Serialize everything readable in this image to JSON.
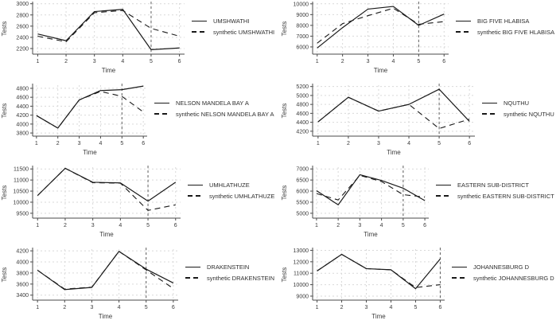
{
  "figure": {
    "ylabel": "Tests",
    "xlabel": "Time",
    "layout": "4 rows x 2 columns",
    "colors": {
      "series_line": "#1a1a1a",
      "grid_line": "#d9d9d9",
      "axis_line": "#4a4a4a",
      "treatment_vline": "#606060",
      "text": "#3a3a3a",
      "background": "#ffffff"
    }
  },
  "chart_data": [
    {
      "type": "line",
      "district": "UMSHWATHI",
      "xlabel": "Time",
      "ylabel": "Tests",
      "x": [
        1,
        2,
        3,
        4,
        5,
        6
      ],
      "xticks": [
        1,
        2,
        3,
        4,
        5,
        6
      ],
      "xlim": [
        0.82,
        6.18
      ],
      "yticks": [
        2200,
        2400,
        2600,
        2800,
        3000
      ],
      "ylim": [
        2100,
        3010
      ],
      "vline_x": 5,
      "grid": true,
      "legend_position": "right",
      "series": [
        {
          "name": "UMSHWATHI",
          "style": "solid",
          "values": [
            2460,
            2340,
            2860,
            2900,
            2180,
            2210
          ]
        },
        {
          "name": "synthetic UMSHWATHI",
          "style": "dashed",
          "values": [
            2420,
            2320,
            2840,
            2880,
            2560,
            2420
          ]
        }
      ]
    },
    {
      "type": "line",
      "district": "BIG FIVE HLABISA",
      "xlabel": "Time",
      "ylabel": "Tests",
      "x": [
        1,
        2,
        3,
        4,
        5,
        6
      ],
      "xticks": [
        1,
        2,
        3,
        4,
        5,
        6
      ],
      "xlim": [
        0.82,
        6.18
      ],
      "yticks": [
        6000,
        7000,
        8000,
        9000,
        10000
      ],
      "ylim": [
        5330,
        10060
      ],
      "vline_x": 5,
      "grid": true,
      "legend_position": "right",
      "series": [
        {
          "name": "BIG FIVE HLABISA",
          "style": "solid",
          "values": [
            5900,
            7790,
            9510,
            9760,
            8000,
            9050
          ]
        },
        {
          "name": "synthetic BIG FIVE HLABISA",
          "style": "dashed",
          "values": [
            6350,
            8160,
            8900,
            9590,
            8100,
            8350
          ]
        }
      ]
    },
    {
      "type": "line",
      "district": "NELSON MANDELA BAY A",
      "xlabel": "Time",
      "ylabel": "Tests",
      "x": [
        1,
        2,
        3,
        4,
        5,
        6
      ],
      "xticks": [
        1,
        2,
        3,
        4,
        5,
        6
      ],
      "xlim": [
        0.82,
        6.18
      ],
      "yticks": [
        3800,
        4000,
        4200,
        4400,
        4600,
        4800
      ],
      "ylim": [
        3730,
        4870
      ],
      "vline_x": 5,
      "grid": true,
      "legend_position": "right",
      "series": [
        {
          "name": "NELSON MANDELA BAY A",
          "style": "solid",
          "values": [
            4190,
            3910,
            4540,
            4750,
            4770,
            4850
          ]
        },
        {
          "name": "synthetic NELSON MANDELA BAY A",
          "style": "dashed",
          "values": [
            4190,
            3910,
            4540,
            4730,
            4620,
            4270
          ]
        }
      ]
    },
    {
      "type": "line",
      "district": "NQUTHU",
      "xlabel": "Time",
      "ylabel": "Tests",
      "x": [
        1,
        2,
        3,
        4,
        5,
        6
      ],
      "xticks": [
        1,
        2,
        3,
        4,
        5,
        6
      ],
      "xlim": [
        0.82,
        6.18
      ],
      "yticks": [
        4200,
        4400,
        4600,
        4800,
        5000,
        5200
      ],
      "ylim": [
        4090,
        5230
      ],
      "vline_x": 5,
      "grid": true,
      "legend_position": "right",
      "series": [
        {
          "name": "NQUTHU",
          "style": "solid",
          "values": [
            4410,
            4960,
            4650,
            4800,
            5140,
            4420
          ]
        },
        {
          "name": "synthetic NQUTHU",
          "style": "dashed",
          "values": [
            4410,
            4960,
            4650,
            4800,
            4260,
            4470
          ]
        }
      ]
    },
    {
      "type": "line",
      "district": "UMHLATHUZE",
      "xlabel": "Time",
      "ylabel": "Tests",
      "x": [
        1,
        2,
        3,
        4,
        5,
        6
      ],
      "xticks": [
        1,
        2,
        3,
        4,
        5,
        6
      ],
      "xlim": [
        0.82,
        6.18
      ],
      "yticks": [
        9500,
        10000,
        10500,
        11000,
        11500
      ],
      "ylim": [
        9280,
        11580
      ],
      "vline_x": 5,
      "grid": true,
      "legend_position": "right",
      "series": [
        {
          "name": "UMHLATHUZE",
          "style": "solid",
          "values": [
            10300,
            11530,
            10900,
            10870,
            10050,
            10900
          ]
        },
        {
          "name": "synthetic UMHLATHUZE",
          "style": "dashed",
          "values": [
            10300,
            11530,
            10880,
            10860,
            9630,
            9880
          ]
        }
      ]
    },
    {
      "type": "line",
      "district": "EASTERN SUB-DISTRICT",
      "xlabel": "Time",
      "ylabel": "Tests",
      "x": [
        1,
        2,
        3,
        4,
        5,
        6
      ],
      "xticks": [
        1,
        2,
        3,
        4,
        5,
        6
      ],
      "xlim": [
        0.82,
        6.18
      ],
      "yticks": [
        5000,
        5500,
        6000,
        6500,
        7000
      ],
      "ylim": [
        4780,
        7080
      ],
      "vline_x": 5,
      "grid": true,
      "legend_position": "right",
      "series": [
        {
          "name": "EASTERN SUB-DISTRICT",
          "style": "solid",
          "values": [
            6020,
            5380,
            6740,
            6480,
            6130,
            5570
          ]
        },
        {
          "name": "synthetic EASTERN SUB-DISTRICT",
          "style": "dashed",
          "values": [
            5890,
            5600,
            6710,
            6430,
            5840,
            5730
          ]
        }
      ]
    },
    {
      "type": "line",
      "district": "DRAKENSTEIN",
      "xlabel": "Time",
      "ylabel": "Tests",
      "x": [
        1,
        2,
        3,
        4,
        5,
        6
      ],
      "xticks": [
        1,
        2,
        3,
        4,
        5,
        6
      ],
      "xlim": [
        0.82,
        6.18
      ],
      "yticks": [
        3400,
        3600,
        3800,
        4000,
        4200
      ],
      "ylim": [
        3310,
        4230
      ],
      "vline_x": 5,
      "grid": true,
      "legend_position": "right",
      "series": [
        {
          "name": "DRAKENSTEIN",
          "style": "solid",
          "values": [
            3850,
            3500,
            3540,
            4190,
            3870,
            3620
          ]
        },
        {
          "name": "synthetic DRAKENSTEIN",
          "style": "dashed",
          "values": [
            3850,
            3510,
            3545,
            4190,
            3855,
            3520
          ]
        }
      ]
    },
    {
      "type": "line",
      "district": "JOHANNESBURG D",
      "xlabel": "Time",
      "ylabel": "Tests",
      "x": [
        1,
        2,
        3,
        4,
        5,
        6
      ],
      "xticks": [
        1,
        2,
        3,
        4,
        5,
        6
      ],
      "xlim": [
        0.82,
        6.18
      ],
      "yticks": [
        9000,
        10000,
        11000,
        12000,
        13000
      ],
      "ylim": [
        8650,
        13100
      ],
      "vline_x": 6,
      "grid": true,
      "legend_position": "right",
      "series": [
        {
          "name": "JOHANNESBURG D",
          "style": "solid",
          "values": [
            11200,
            12650,
            11400,
            11300,
            9650,
            12250
          ]
        },
        {
          "name": "synthetic JOHANNESBURG D",
          "style": "dashed",
          "values": [
            11200,
            12650,
            11400,
            11300,
            9750,
            10000
          ]
        }
      ]
    }
  ]
}
